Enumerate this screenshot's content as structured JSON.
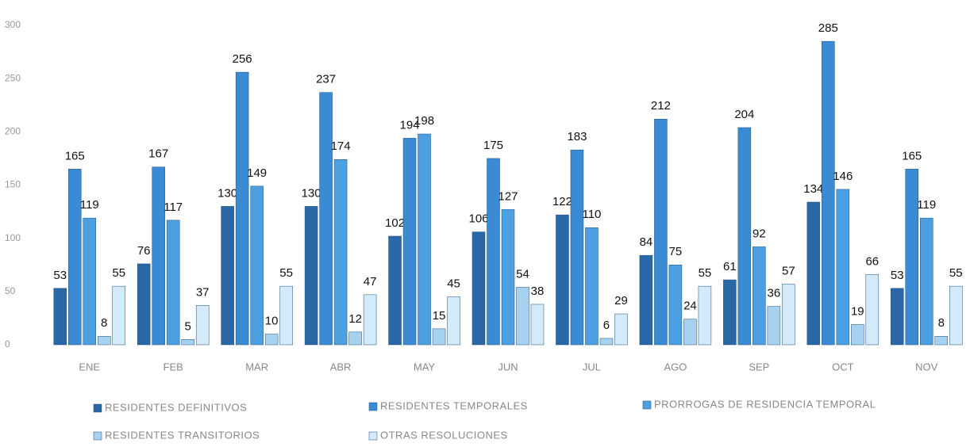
{
  "chart_data": {
    "type": "bar",
    "categories": [
      "ENE",
      "FEB",
      "MAR",
      "ABR",
      "MAY",
      "JUN",
      "JUL",
      "AGO",
      "SEP",
      "OCT",
      "NOV"
    ],
    "series": [
      {
        "name": "RESIDENTES DEFINITIVOS",
        "color": "#2a67a6",
        "values": [
          53,
          76,
          130,
          130,
          102,
          106,
          122,
          84,
          61,
          134,
          53
        ]
      },
      {
        "name": "RESIDENTES TEMPORALES",
        "color": "#3a8bd4",
        "values": [
          165,
          167,
          256,
          237,
          194,
          175,
          183,
          212,
          204,
          285,
          165
        ]
      },
      {
        "name": "PRORROGAS DE RESIDENCIA TEMPORAL",
        "color": "#4c9fe0",
        "values": [
          119,
          117,
          149,
          174,
          198,
          127,
          110,
          75,
          92,
          146,
          119
        ]
      },
      {
        "name": "RESIDENTES TRANSITORIOS",
        "color": "#a6d2ef",
        "values": [
          8,
          5,
          10,
          12,
          15,
          54,
          6,
          24,
          36,
          19,
          8
        ]
      },
      {
        "name": "OTRAS RESOLUCIONES",
        "color": "#d2eaf9",
        "values": [
          55,
          37,
          55,
          47,
          45,
          38,
          29,
          55,
          57,
          66,
          55
        ]
      }
    ],
    "ylim": [
      0,
      300
    ],
    "yticks": [
      0,
      50,
      100,
      150,
      200,
      250,
      300
    ],
    "grid": false
  }
}
